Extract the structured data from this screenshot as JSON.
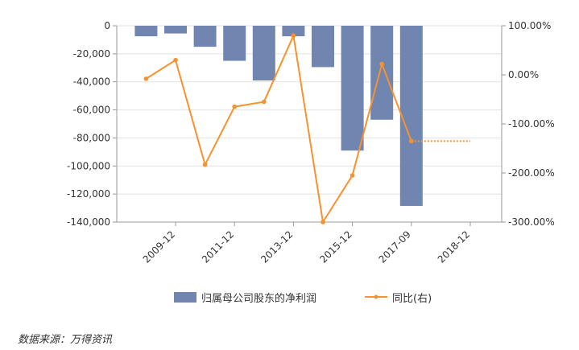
{
  "chart_data": {
    "type": "bar",
    "x_tick_labels": [
      "2009-12",
      "2011-12",
      "2013-12",
      "2015-12",
      "2017-09",
      "2018-12"
    ],
    "periods": [
      "",
      "2009-12",
      "",
      "2011-12",
      "",
      "2013-12",
      "",
      "2015-12",
      "",
      "2017-09",
      "",
      "2018-12"
    ],
    "series": [
      {
        "name": "归属母公司股东的净利润",
        "axis": "left",
        "type": "bar",
        "color": "#7086b0",
        "values": [
          -7500,
          -5500,
          -15000,
          -25000,
          -39000,
          -7500,
          -29500,
          -89000,
          -67000,
          -128500,
          null,
          null
        ]
      },
      {
        "name": "同比(右)",
        "axis": "right",
        "type": "line",
        "color": "#f7922e",
        "values": [
          -8,
          30,
          -183,
          -65,
          -55,
          80,
          -300,
          -205,
          22,
          -135,
          null,
          null
        ],
        "unit": "%"
      }
    ],
    "dashed_segment": {
      "from_index": 9,
      "to_index": 11,
      "value": -135
    },
    "y_left": {
      "ticks": [
        "0",
        "-20,000",
        "-40,000",
        "-60,000",
        "-80,000",
        "-100,000",
        "-120,000",
        "-140,000"
      ],
      "min": -140000,
      "max": 0
    },
    "y_right": {
      "ticks": [
        "100.00%",
        "0.00%",
        "-100.00%",
        "-200.00%",
        "-300.00%"
      ],
      "min": -300,
      "max": 100
    },
    "grid": true,
    "legend_position": "bottom"
  },
  "source": "数据来源：万得资讯"
}
